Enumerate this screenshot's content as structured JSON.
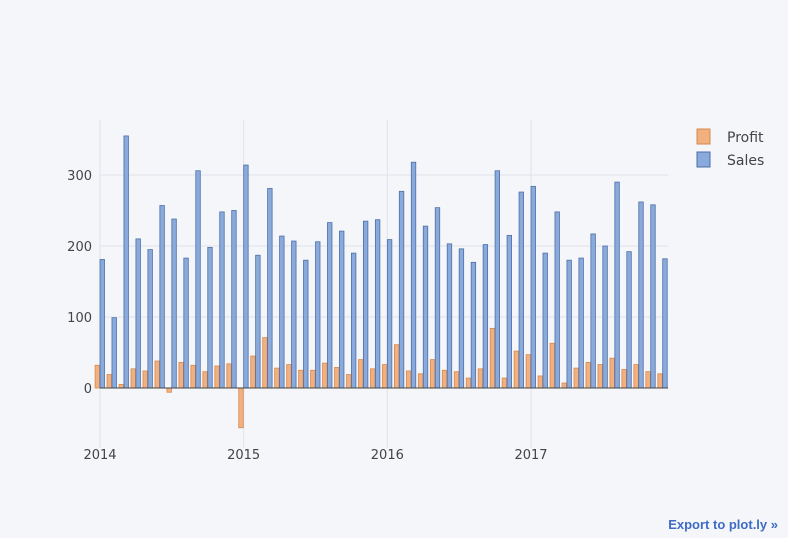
{
  "chart_data": {
    "type": "bar",
    "barmode": "group",
    "title": "",
    "xlabel": "",
    "ylabel": "",
    "x_tick_labels": [
      "2014",
      "2015",
      "2016",
      "2017"
    ],
    "y_ticks": [
      0,
      100,
      200,
      300
    ],
    "ylim": [
      -85,
      380
    ],
    "grid": true,
    "legend_position": "top-right",
    "x": [
      "2014-01",
      "2014-02",
      "2014-03",
      "2014-04",
      "2014-05",
      "2014-06",
      "2014-07",
      "2014-08",
      "2014-09",
      "2014-10",
      "2014-11",
      "2014-12",
      "2015-01",
      "2015-02",
      "2015-03",
      "2015-04",
      "2015-05",
      "2015-06",
      "2015-07",
      "2015-08",
      "2015-09",
      "2015-10",
      "2015-11",
      "2015-12",
      "2016-01",
      "2016-02",
      "2016-03",
      "2016-04",
      "2016-05",
      "2016-06",
      "2016-07",
      "2016-08",
      "2016-09",
      "2016-10",
      "2016-11",
      "2016-12",
      "2017-01",
      "2017-02",
      "2017-03",
      "2017-04",
      "2017-05",
      "2017-06",
      "2017-07",
      "2017-08",
      "2017-09",
      "2017-10",
      "2017-11",
      "2017-12"
    ],
    "series": [
      {
        "name": "Profit",
        "color": "#f1b07f",
        "stroke": "#d9894a",
        "values": [
          32,
          19,
          5,
          27,
          24,
          38,
          -6,
          36,
          32,
          23,
          31,
          34,
          -56,
          45,
          71,
          28,
          33,
          25,
          25,
          35,
          29,
          19,
          40,
          27,
          33,
          61,
          24,
          20,
          40,
          25,
          23,
          14,
          27,
          84,
          14,
          52,
          47,
          17,
          63,
          7,
          28,
          36,
          33,
          42,
          26,
          33,
          23,
          20
        ]
      },
      {
        "name": "Sales",
        "color": "#8aaadb",
        "stroke": "#4c6fa8",
        "values": [
          181,
          99,
          355,
          210,
          195,
          257,
          238,
          183,
          306,
          198,
          248,
          250,
          314,
          187,
          281,
          214,
          207,
          180,
          206,
          233,
          221,
          190,
          235,
          237,
          209,
          277,
          318,
          228,
          254,
          203,
          196,
          177,
          202,
          306,
          215,
          276,
          284,
          190,
          248,
          180,
          183,
          217,
          200,
          290,
          192,
          262,
          258,
          182
        ]
      }
    ]
  },
  "export_link": "Export to plot.ly »"
}
